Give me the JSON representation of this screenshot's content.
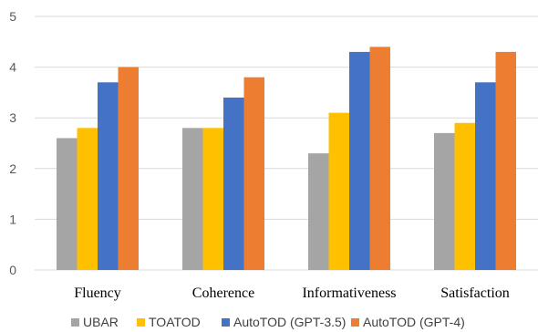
{
  "chart_data": {
    "type": "bar",
    "categories": [
      "Fluency",
      "Coherence",
      "Informativeness",
      "Satisfaction"
    ],
    "series": [
      {
        "name": "UBAR",
        "color": "#a5a5a5",
        "values": [
          2.6,
          2.8,
          2.3,
          2.7
        ]
      },
      {
        "name": "TOATOD",
        "color": "#ffc000",
        "values": [
          2.8,
          2.8,
          3.1,
          2.9
        ]
      },
      {
        "name": "AutoTOD (GPT-3.5)",
        "color": "#4472c4",
        "values": [
          3.7,
          3.4,
          4.3,
          3.7
        ]
      },
      {
        "name": "AutoTOD (GPT-4)",
        "color": "#ed7d31",
        "values": [
          4.0,
          3.8,
          4.4,
          4.3
        ]
      }
    ],
    "yticks": [
      0,
      1,
      2,
      3,
      4,
      5
    ],
    "ylim": [
      0,
      5
    ],
    "title": "",
    "xlabel": "",
    "ylabel": "",
    "grid": true,
    "legend": "bottom"
  }
}
